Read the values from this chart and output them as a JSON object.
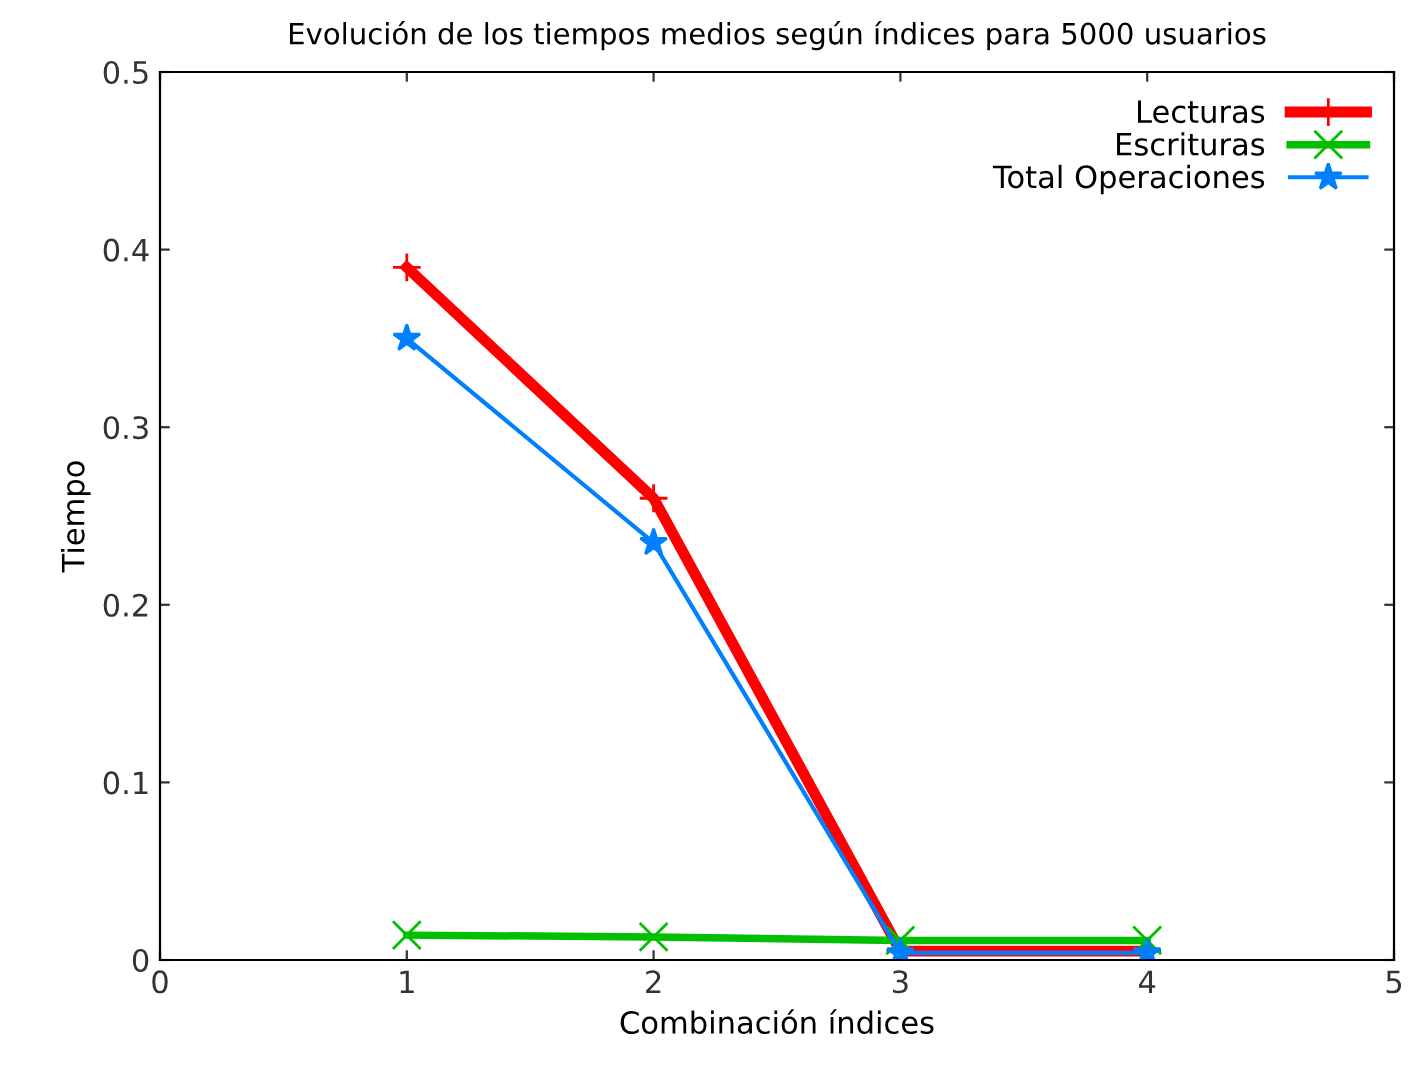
{
  "chart_data": {
    "type": "line",
    "title": "Evolución de los tiempos medios según índices para 5000 usuarios",
    "xlabel": "Combinación índices",
    "ylabel": "Tiempo",
    "x": [
      1,
      2,
      3,
      4
    ],
    "series": [
      {
        "name": "Lecturas",
        "color": "#ff0000",
        "marker": "cross",
        "values": [
          0.39,
          0.26,
          0.005,
          0.005
        ]
      },
      {
        "name": "Escrituras",
        "color": "#00c000",
        "marker": "x",
        "values": [
          0.014,
          0.013,
          0.011,
          0.011
        ]
      },
      {
        "name": "Total Operaciones",
        "color": "#0080ff",
        "marker": "star",
        "values": [
          0.35,
          0.235,
          0.004,
          0.004
        ]
      }
    ],
    "xlim": [
      0,
      5
    ],
    "xticks": [
      0,
      1,
      2,
      3,
      4,
      5
    ],
    "ylim": [
      0,
      0.5
    ],
    "yticks": [
      0,
      0.1,
      0.2,
      0.3,
      0.4,
      0.5
    ],
    "grid": false,
    "legend": "top right",
    "line_style": "solid"
  }
}
